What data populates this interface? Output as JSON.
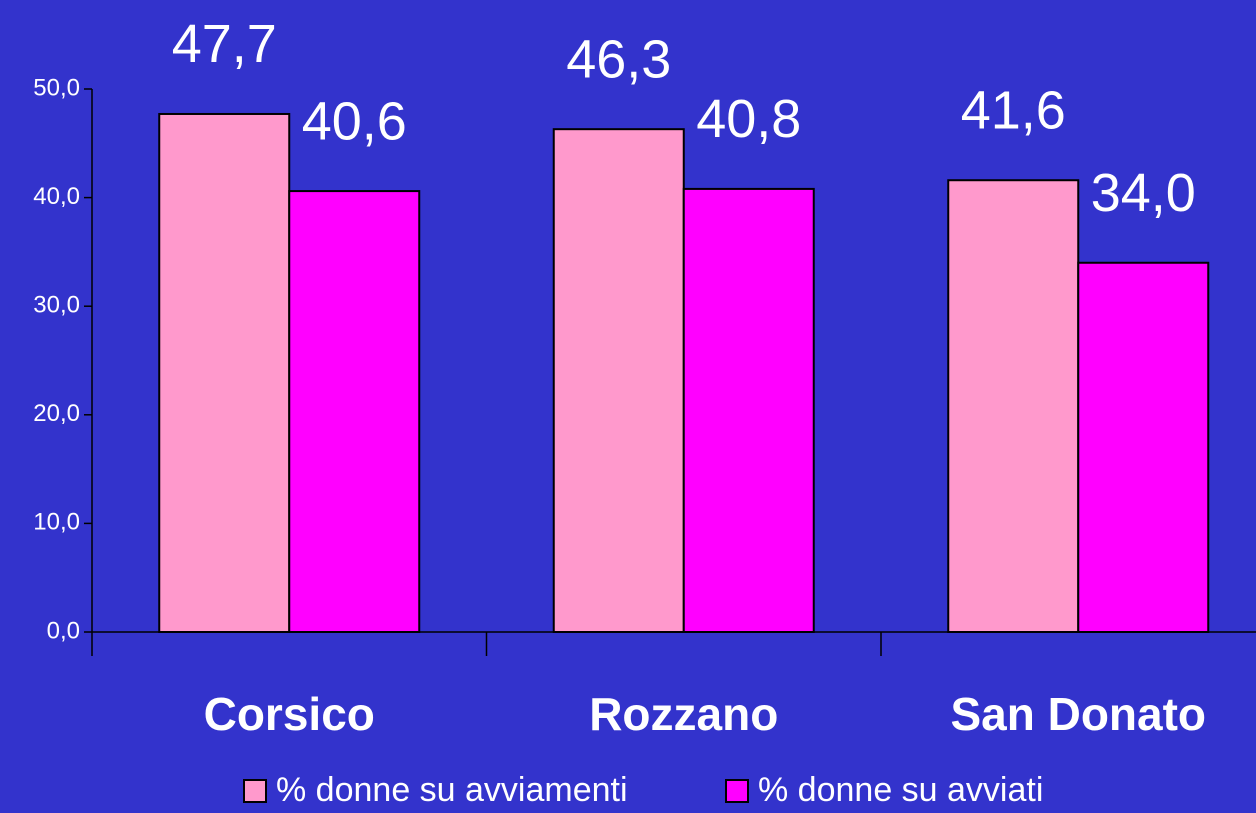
{
  "chart_data": {
    "type": "bar",
    "categories": [
      "Corsico",
      "Rozzano",
      "San Donato"
    ],
    "series": [
      {
        "name": "% donne su avviamenti",
        "color": "#ff99cc",
        "values": [
          47.7,
          46.3,
          41.6
        ],
        "value_labels": [
          "47,7",
          "46,3",
          "41,6"
        ]
      },
      {
        "name": "% donne su avviati",
        "color": "#ff00ff",
        "values": [
          40.6,
          40.8,
          34.0
        ],
        "value_labels": [
          "40,6",
          "40,8",
          "34,0"
        ]
      }
    ],
    "ylim": [
      0,
      50
    ],
    "yticks": [
      {
        "value": 0,
        "label": "0,0"
      },
      {
        "value": 10,
        "label": "10,0"
      },
      {
        "value": 20,
        "label": "20,0"
      },
      {
        "value": 30,
        "label": "30,0"
      },
      {
        "value": 40,
        "label": "40,0"
      },
      {
        "value": 50,
        "label": "50,0"
      }
    ],
    "grid": false,
    "legend": "bottom"
  }
}
